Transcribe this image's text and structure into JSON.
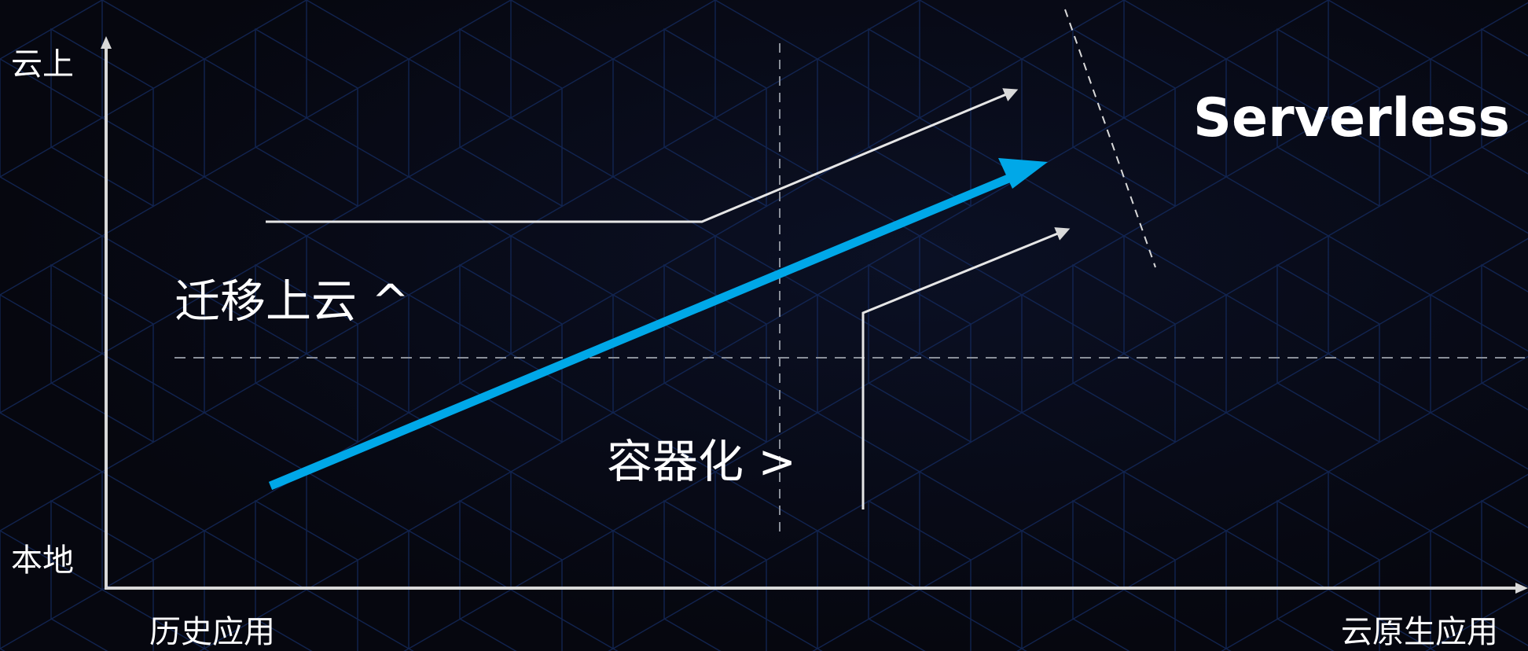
{
  "axes": {
    "y_top_label": "云上",
    "y_bottom_label": "本地",
    "x_left_label": "历史应用",
    "x_right_label": "云原生应用"
  },
  "paths": {
    "migrate_label": "迁移上云 ^",
    "containerize_label": "容器化 >",
    "serverless_label": "Serverless"
  },
  "colors": {
    "background": "#06070f",
    "grid_line": "#12285a",
    "axis": "#d9d9d9",
    "accent_arrow": "#00a8e8",
    "text": "#ffffff"
  }
}
